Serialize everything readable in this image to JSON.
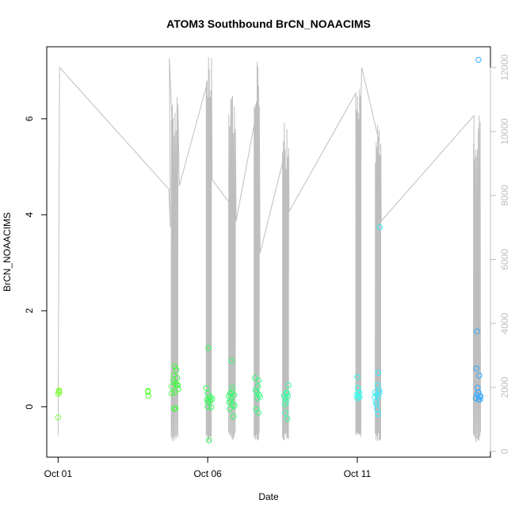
{
  "chart_data": {
    "type": "scatter",
    "title": "ATOM3 Southbound BrCN_NOAACIMS",
    "xlabel": "Date",
    "ylabel": "BrCN_NOAACIMS",
    "x_tick_labels": [
      "Oct 01",
      "Oct 06",
      "Oct 11"
    ],
    "x_tick_values": [
      0,
      5,
      10
    ],
    "xlim": [
      -0.38,
      14.45
    ],
    "ylim": [
      -1.05,
      7.5
    ],
    "y_ticks": [
      0,
      2,
      4,
      6
    ],
    "secondary_axis": {
      "ylim": [
        -180,
        12650
      ],
      "ticks": [
        0,
        2000,
        4000,
        6000,
        8000,
        10000,
        12000
      ],
      "color": "#bebebe"
    },
    "grid": false,
    "point_groups": [
      {
        "color": "#7fff3a",
        "points": [
          [
            0.0,
            0.27
          ],
          [
            0.02,
            0.32
          ],
          [
            0.04,
            0.3
          ],
          [
            0.0,
            -0.22
          ],
          [
            0.03,
            0.34
          ]
        ]
      },
      {
        "color": "#5cff3a",
        "points": [
          [
            3.0,
            0.31
          ],
          [
            3.02,
            0.23
          ],
          [
            3.0,
            0.33
          ]
        ]
      },
      {
        "color": "#3cff3a",
        "points": [
          [
            3.8,
            0.42
          ],
          [
            3.85,
            0.55
          ],
          [
            3.9,
            0.84
          ],
          [
            3.95,
            0.77
          ],
          [
            3.9,
            0.3
          ],
          [
            4.0,
            0.45
          ],
          [
            3.8,
            0.28
          ],
          [
            3.86,
            0.65
          ],
          [
            3.92,
            0.5
          ],
          [
            3.88,
            -0.04
          ],
          [
            3.92,
            -0.03
          ],
          [
            3.98,
            0.6
          ],
          [
            4.02,
            0.37
          ],
          [
            3.96,
            0.45
          ]
        ]
      },
      {
        "color": "#33ff5a",
        "points": [
          [
            4.95,
            0.39
          ],
          [
            5.0,
            0.28
          ],
          [
            5.05,
            0.18
          ],
          [
            5.02,
            1.23
          ],
          [
            5.0,
            0.0
          ],
          [
            4.98,
            0.15
          ],
          [
            5.08,
            0.12
          ],
          [
            5.1,
            0.2
          ],
          [
            5.12,
            -0.01
          ],
          [
            5.04,
            -0.7
          ],
          [
            5.15,
            0.16
          ],
          [
            5.0,
            0.1
          ]
        ]
      },
      {
        "color": "#33ff6a",
        "points": [
          [
            5.7,
            0.22
          ],
          [
            5.72,
            0.09
          ],
          [
            5.75,
            0.28
          ],
          [
            5.8,
            0.96
          ],
          [
            5.82,
            0.4
          ],
          [
            5.85,
            0.05
          ],
          [
            5.88,
            0.24
          ],
          [
            5.78,
            0.18
          ],
          [
            5.74,
            -0.05
          ],
          [
            5.83,
            0.3
          ],
          [
            5.86,
            -0.2
          ],
          [
            5.9,
            0.02
          ],
          [
            5.76,
            0.12
          ]
        ]
      },
      {
        "color": "#33ff80",
        "points": [
          [
            6.6,
            0.34
          ],
          [
            6.65,
            0.3
          ],
          [
            6.7,
            0.55
          ],
          [
            6.68,
            0.42
          ],
          [
            6.72,
            0.25
          ],
          [
            6.62,
            -0.05
          ],
          [
            6.75,
            0.2
          ],
          [
            6.7,
            -0.12
          ],
          [
            6.66,
            0.18
          ],
          [
            6.58,
            0.6
          ]
        ]
      },
      {
        "color": "#33ffa0",
        "points": [
          [
            7.55,
            0.23
          ],
          [
            7.6,
            0.18
          ],
          [
            7.62,
            0.1
          ],
          [
            7.7,
            0.45
          ],
          [
            7.65,
            0.28
          ],
          [
            7.58,
            0.05
          ],
          [
            7.6,
            -0.12
          ],
          [
            7.68,
            0.22
          ],
          [
            7.66,
            -0.25
          ],
          [
            7.64,
            0.3
          ]
        ]
      },
      {
        "color": "#33ffee",
        "points": [
          [
            10.0,
            0.62
          ],
          [
            10.02,
            0.4
          ],
          [
            10.05,
            0.28
          ],
          [
            10.08,
            0.2
          ],
          [
            9.98,
            0.25
          ],
          [
            10.06,
            0.3
          ],
          [
            10.0,
            0.18
          ],
          [
            10.04,
            0.22
          ]
        ]
      },
      {
        "color": "#33eeff",
        "points": [
          [
            10.75,
            3.74
          ],
          [
            10.7,
            0.71
          ],
          [
            10.6,
            0.3
          ],
          [
            10.65,
            0.25
          ],
          [
            10.72,
            0.35
          ],
          [
            10.68,
            0.45
          ],
          [
            10.62,
            0.1
          ],
          [
            10.66,
            -0.05
          ],
          [
            10.7,
            0.2
          ],
          [
            10.74,
            0.3
          ],
          [
            10.58,
            0.2
          ],
          [
            10.64,
            0.05
          ],
          [
            10.7,
            -0.15
          ]
        ]
      },
      {
        "color": "#33aaff",
        "points": [
          [
            14.05,
            7.23
          ],
          [
            14.0,
            1.57
          ],
          [
            13.98,
            0.8
          ],
          [
            14.08,
            0.65
          ],
          [
            14.02,
            0.4
          ],
          [
            14.05,
            0.3
          ],
          [
            14.1,
            0.2
          ],
          [
            14.0,
            0.25
          ],
          [
            14.06,
            0.15
          ],
          [
            14.12,
            0.22
          ],
          [
            13.96,
            0.18
          ],
          [
            14.04,
            0.3
          ],
          [
            14.1,
            0.15
          ]
        ]
      }
    ]
  }
}
